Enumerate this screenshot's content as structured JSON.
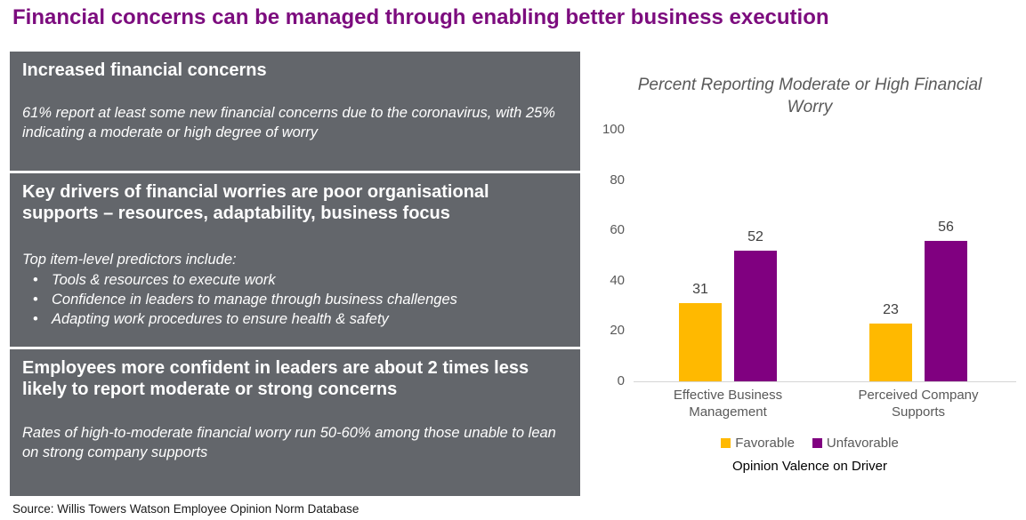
{
  "page": {
    "title": "Financial concerns can be managed through enabling better business execution",
    "source": "Source: Willis Towers Watson Employee Opinion Norm Database"
  },
  "panels": [
    {
      "heading": "Increased financial concerns",
      "body": "61% report at least some new financial concerns due to the coronavirus, with 25% indicating a moderate or high degree of worry"
    },
    {
      "heading": "Key drivers of financial worries are poor organisational supports – resources, adaptability, business focus",
      "intro": "Top item-level predictors include:",
      "bullets": [
        "Tools & resources to execute work",
        "Confidence in leaders to manage through business challenges",
        "Adapting work procedures to ensure health & safety"
      ]
    },
    {
      "heading": "Employees more confident in leaders are about 2 times less likely to report moderate or strong concerns",
      "body": "Rates of high-to-moderate financial worry run 50-60% among those unable to lean on strong company supports"
    }
  ],
  "chart_data": {
    "type": "bar",
    "title": "Percent Reporting Moderate or High Financial Worry",
    "categories": [
      "Effective Business Management",
      "Perceived Company Supports"
    ],
    "series": [
      {
        "name": "Favorable",
        "color": "#FFB900",
        "values": [
          31,
          23
        ]
      },
      {
        "name": "Unfavorable",
        "color": "#800080",
        "values": [
          52,
          56
        ]
      }
    ],
    "xlabel": "Opinion Valence on Driver",
    "ylabel": "",
    "ylim": [
      0,
      100
    ],
    "yticks": [
      0,
      20,
      40,
      60,
      80,
      100
    ],
    "grid": false,
    "legend_position": "bottom",
    "bar_value_labels": true
  },
  "colors": {
    "title_purple": "#7C0C7E",
    "panel_gray": "#63666B",
    "favorable_gold": "#FFB900",
    "unfavorable_purple": "#800080",
    "chart_text_gray": "#595959"
  }
}
